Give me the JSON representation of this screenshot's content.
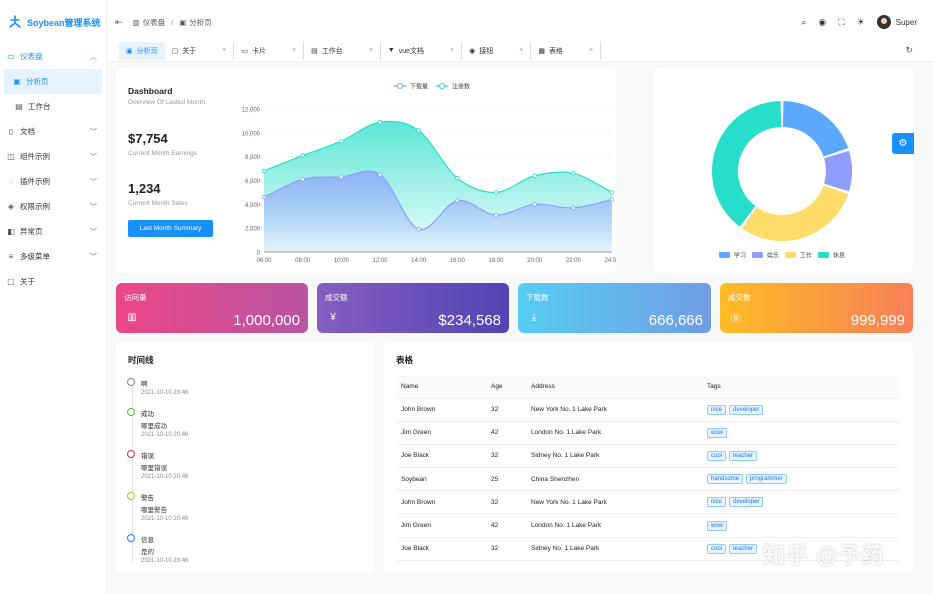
{
  "app": {
    "title": "Soybean管理系统"
  },
  "sidebar": {
    "items": [
      {
        "label": "仪表盘",
        "icon": "dashboard-icon",
        "expanded": true
      },
      {
        "label": "分析页",
        "icon": "monitor-icon"
      },
      {
        "label": "工作台",
        "icon": "workbench-icon"
      },
      {
        "label": "文档",
        "icon": "doc-icon"
      },
      {
        "label": "组件示例",
        "icon": "component-icon"
      },
      {
        "label": "插件示例",
        "icon": "plugin-icon"
      },
      {
        "label": "权限示例",
        "icon": "shield-icon"
      },
      {
        "label": "异常页",
        "icon": "exception-icon"
      },
      {
        "label": "多级菜单",
        "icon": "menu-icon"
      },
      {
        "label": "关于",
        "icon": "about-icon"
      }
    ]
  },
  "header": {
    "breadcrumb": [
      "仪表盘",
      "分析页"
    ],
    "user": "Super"
  },
  "tabs": [
    {
      "label": "分析页",
      "active": true
    },
    {
      "label": "关于"
    },
    {
      "label": "卡片"
    },
    {
      "label": "工作台"
    },
    {
      "label": "vue文档"
    },
    {
      "label": "接钮"
    },
    {
      "label": "表格"
    }
  ],
  "dashboard": {
    "title": "Dashboard",
    "subtitle": "Overview Of Lasted Month",
    "earnings_value": "$7,754",
    "earnings_label": "Current Month Earnings",
    "sales_value": "1,234",
    "sales_label": "Current Month Sales",
    "button": "Last Month Summary"
  },
  "chart_data": [
    {
      "type": "area",
      "x": [
        "06:00",
        "08:00",
        "10:00",
        "12:00",
        "14:00",
        "16:00",
        "18:00",
        "20:00",
        "22:00",
        "24:00"
      ],
      "series": [
        {
          "name": "下载量",
          "values": [
            4600,
            6100,
            6300,
            6500,
            1900,
            4300,
            3100,
            4000,
            3700,
            4400
          ],
          "color": "#8e9dff"
        },
        {
          "name": "注册数",
          "values": [
            6800,
            8100,
            9300,
            10900,
            10200,
            6200,
            5000,
            6400,
            6600,
            5000
          ],
          "color": "#26deca"
        }
      ],
      "ylim": [
        0,
        12000
      ],
      "yticks": [
        "0",
        "2,000",
        "4,000",
        "6,000",
        "8,000",
        "10,000",
        "12,000"
      ],
      "legend": "top-center"
    },
    {
      "type": "pie",
      "categories": [
        "学习",
        "娱乐",
        "工作",
        "休息"
      ],
      "values": [
        20,
        10,
        30,
        40
      ],
      "colors": [
        "#5da8ff",
        "#8e9dff",
        "#fedc69",
        "#26deca"
      ],
      "legend": "bottom"
    }
  ],
  "kpis": [
    {
      "title": "访问量",
      "value": "1,000,000",
      "icon": "bar-chart-icon",
      "from": "#ec4786",
      "to": "#b955a4"
    },
    {
      "title": "成交额",
      "value": "$234,568",
      "icon": "money-icon",
      "from": "#865ec0",
      "to": "#5144b4"
    },
    {
      "title": "下载数",
      "value": "666,666",
      "icon": "download-icon",
      "from": "#56cdf3",
      "to": "#719de3"
    },
    {
      "title": "成交数",
      "value": "999,999",
      "icon": "deal-icon",
      "from": "#fcbc25",
      "to": "#f68057"
    }
  ],
  "timeline": {
    "title": "时间线",
    "items": [
      {
        "name": "啊",
        "desc": "",
        "time": "2021-10-10 20:46",
        "color": "#888888"
      },
      {
        "name": "成功",
        "desc": "哪里成功",
        "time": "2021-10-10 20:46",
        "color": "#52c41a"
      },
      {
        "name": "错误",
        "desc": "哪里错误",
        "time": "2021-10-10 20:46",
        "color": "#d03050"
      },
      {
        "name": "警告",
        "desc": "哪里警告",
        "time": "2021-10-10 20:46",
        "color": "#f0a020"
      },
      {
        "name": "信息",
        "desc": "是的",
        "time": "2021-10-10 20:46",
        "color": "#2080f0"
      }
    ]
  },
  "table": {
    "title": "表格",
    "columns": [
      "Name",
      "Age",
      "Address",
      "Tags"
    ],
    "rows": [
      {
        "name": "John Brown",
        "age": "32",
        "address": "New York No. 1 Lake Park",
        "tags": [
          "nice",
          "developer"
        ]
      },
      {
        "name": "Jim Green",
        "age": "42",
        "address": "London No. 1 Lake Park",
        "tags": [
          "wow"
        ]
      },
      {
        "name": "Joe Black",
        "age": "32",
        "address": "Sidney No. 1 Lake Park",
        "tags": [
          "cool",
          "teacher"
        ]
      },
      {
        "name": "Soybean",
        "age": "25",
        "address": "China Shenzhen",
        "tags": [
          "handsome",
          "programmer"
        ]
      },
      {
        "name": "John Brown",
        "age": "32",
        "address": "New York No. 1 Lake Park",
        "tags": [
          "nice",
          "developer"
        ]
      },
      {
        "name": "Jim Green",
        "age": "42",
        "address": "London No. 1 Lake Park",
        "tags": [
          "wow"
        ]
      },
      {
        "name": "Joe Black",
        "age": "32",
        "address": "Sidney No. 1 Lake Park",
        "tags": [
          "cool",
          "teacher"
        ]
      }
    ]
  },
  "watermark": "知乎 @予药"
}
